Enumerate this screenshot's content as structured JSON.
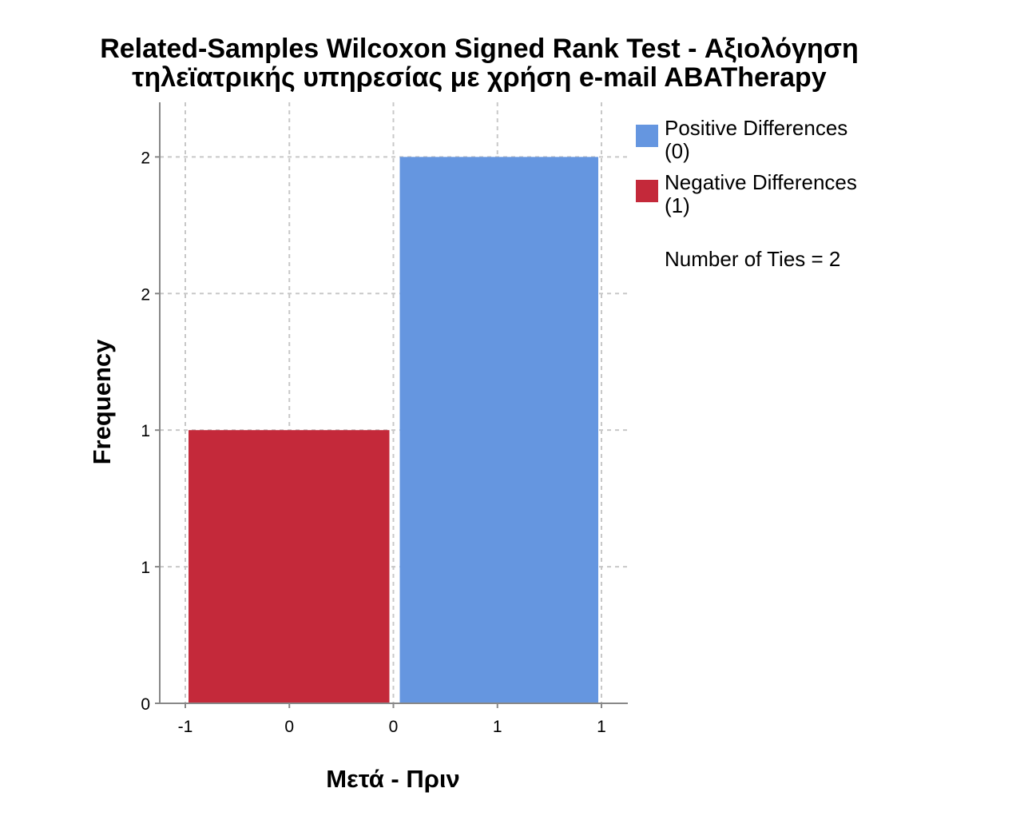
{
  "chart_data": {
    "type": "bar",
    "title_lines": [
      "Related-Samples Wilcoxon Signed Rank Test - Αξιολόγηση",
      "τηλεϊατρικής υπηρεσίας με χρήση e-mail ABATherapy"
    ],
    "xlabel": "Μετά - Πριν",
    "ylabel": "Frequency",
    "x_tick_labels": [
      "-1",
      "0",
      "0",
      "1",
      "1"
    ],
    "y_tick_labels": [
      "0",
      "1",
      "1",
      "2",
      "2"
    ],
    "xlim": [
      -1.0,
      1.0
    ],
    "ylim": [
      0,
      2.2
    ],
    "grid": true,
    "legend_position": "right",
    "bars": [
      {
        "series": "negative",
        "x_start": -1.0,
        "x_end": 0.0,
        "value": 1,
        "color": "#c4293a"
      },
      {
        "series": "positive",
        "x_start": 0.0,
        "x_end": 1.0,
        "value": 2,
        "color": "#6596e0"
      }
    ],
    "legend": [
      {
        "line1": "Positive Differences",
        "line2": "(0)",
        "color": "#6596e0"
      },
      {
        "line1": "Negative Differences",
        "line2": "(1)",
        "color": "#c4293a"
      }
    ],
    "annotation": "Number of Ties = 2"
  }
}
